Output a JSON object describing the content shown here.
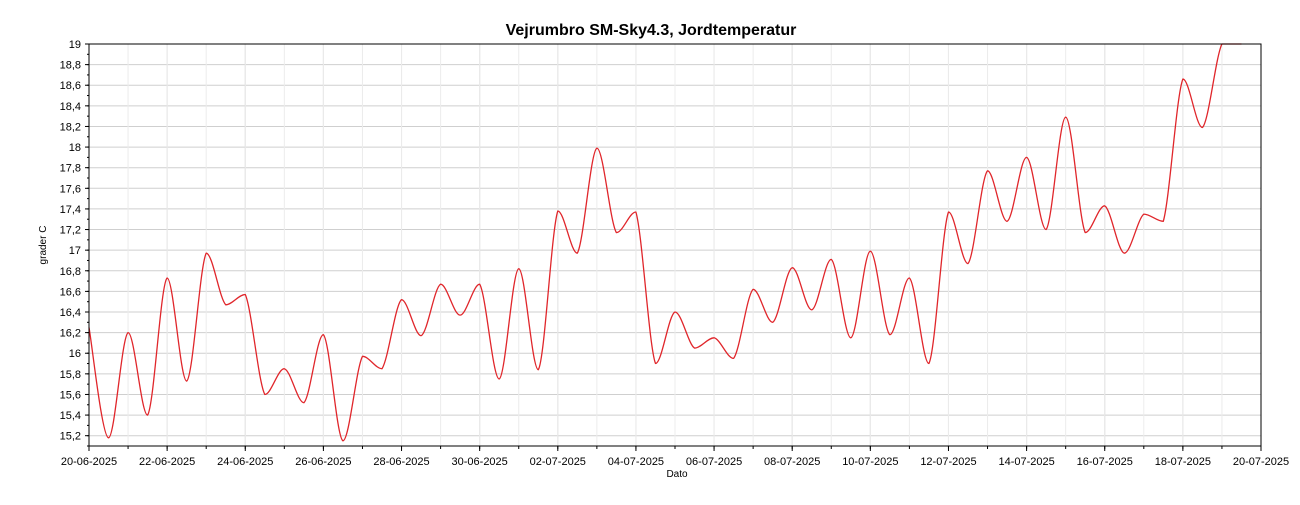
{
  "chart_data": {
    "type": "line",
    "title": "Vejrumbro SM-Sky4.3, Jordtemperatur",
    "xlabel": "Dato",
    "ylabel": "grader C",
    "xlim": [
      "2025-06-20",
      "2025-07-20"
    ],
    "ylim": [
      15.1,
      19.0
    ],
    "y_ticks": [
      "15,2",
      "15,4",
      "15,6",
      "15,8",
      "16",
      "16,2",
      "16,4",
      "16,6",
      "16,8",
      "17",
      "17,2",
      "17,4",
      "17,6",
      "17,8",
      "18",
      "18,2",
      "18,4",
      "18,6",
      "18,8",
      "19"
    ],
    "x_ticks": [
      "20-06-2025",
      "22-06-2025",
      "24-06-2025",
      "26-06-2025",
      "28-06-2025",
      "30-06-2025",
      "02-07-2025",
      "04-07-2025",
      "06-07-2025",
      "08-07-2025",
      "10-07-2025",
      "12-07-2025",
      "14-07-2025",
      "16-07-2025",
      "18-07-2025",
      "20-07-2025"
    ],
    "grid": true,
    "line_color": "#e0262b",
    "series": [
      {
        "name": "",
        "x": [
          "2025-06-20 00:00",
          "2025-06-20 12:00",
          "2025-06-21 00:00",
          "2025-06-21 12:00",
          "2025-06-22 00:00",
          "2025-06-22 12:00",
          "2025-06-23 00:00",
          "2025-06-23 12:00",
          "2025-06-24 00:00",
          "2025-06-24 12:00",
          "2025-06-25 00:00",
          "2025-06-25 12:00",
          "2025-06-26 00:00",
          "2025-06-26 12:00",
          "2025-06-27 00:00",
          "2025-06-27 12:00",
          "2025-06-28 00:00",
          "2025-06-28 12:00",
          "2025-06-29 00:00",
          "2025-06-29 12:00",
          "2025-06-30 00:00",
          "2025-06-30 12:00",
          "2025-07-01 00:00",
          "2025-07-01 12:00",
          "2025-07-02 00:00",
          "2025-07-02 12:00",
          "2025-07-03 00:00",
          "2025-07-03 12:00",
          "2025-07-04 00:00",
          "2025-07-04 12:00",
          "2025-07-05 00:00",
          "2025-07-05 12:00",
          "2025-07-06 00:00",
          "2025-07-06 12:00",
          "2025-07-07 00:00",
          "2025-07-07 12:00",
          "2025-07-08 00:00",
          "2025-07-08 12:00",
          "2025-07-09 00:00",
          "2025-07-09 12:00",
          "2025-07-10 00:00",
          "2025-07-10 12:00",
          "2025-07-11 00:00",
          "2025-07-11 12:00",
          "2025-07-12 00:00",
          "2025-07-12 12:00",
          "2025-07-13 00:00",
          "2025-07-13 12:00",
          "2025-07-14 00:00",
          "2025-07-14 12:00",
          "2025-07-15 00:00",
          "2025-07-15 12:00",
          "2025-07-16 00:00",
          "2025-07-16 12:00",
          "2025-07-17 00:00",
          "2025-07-17 12:00",
          "2025-07-18 00:00",
          "2025-07-18 12:00",
          "2025-07-19 00:00",
          "2025-07-19 12:00"
        ],
        "y": [
          16.25,
          15.18,
          16.2,
          15.4,
          16.73,
          15.73,
          16.97,
          16.47,
          16.57,
          15.6,
          15.85,
          15.52,
          16.18,
          15.15,
          15.97,
          15.85,
          16.52,
          16.17,
          16.67,
          16.37,
          16.67,
          15.75,
          16.82,
          15.84,
          17.38,
          16.97,
          17.99,
          17.17,
          17.37,
          15.9,
          16.4,
          16.05,
          16.15,
          15.95,
          16.62,
          16.3,
          16.83,
          16.42,
          16.91,
          16.15,
          16.99,
          16.18,
          16.73,
          15.9,
          17.37,
          16.87,
          17.77,
          17.28,
          17.9,
          17.2,
          18.29,
          17.17,
          17.43,
          16.97,
          17.35,
          17.28,
          18.66,
          18.19,
          19.0,
          19.0
        ]
      }
    ]
  }
}
